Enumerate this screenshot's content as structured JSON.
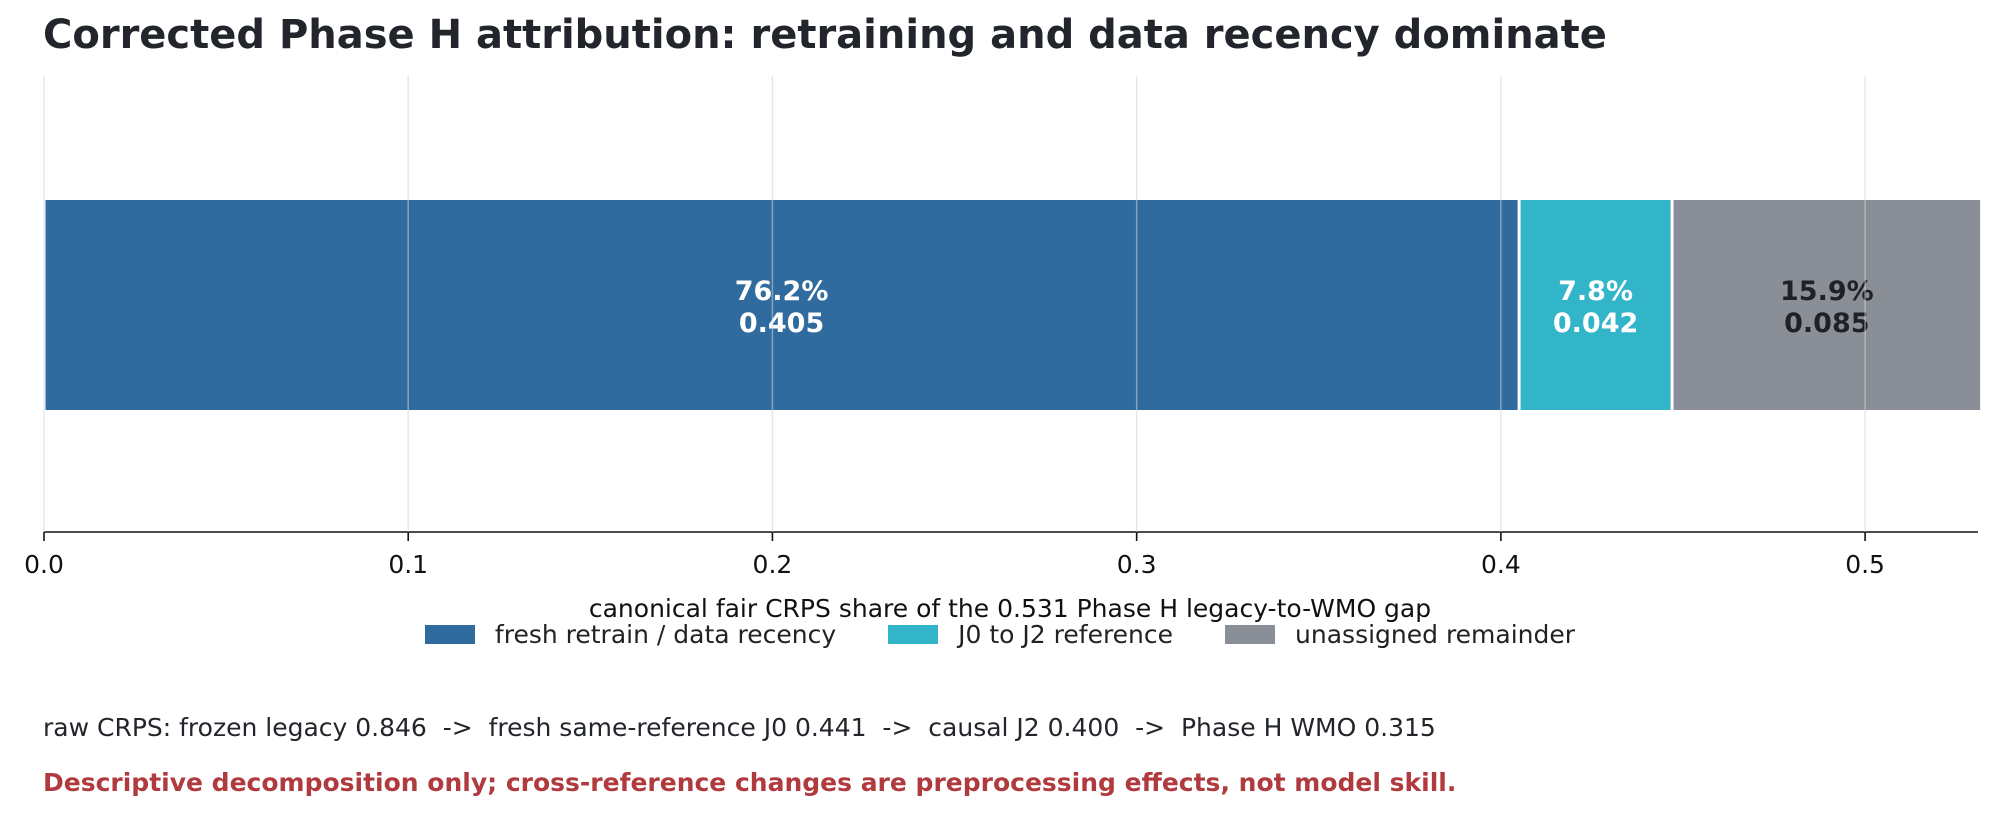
{
  "chart_data": {
    "type": "bar",
    "orientation": "horizontal",
    "stacked": true,
    "title": "Corrected Phase H attribution: retraining and data recency dominate",
    "xlabel": "canonical fair CRPS share of the 0.531 Phase H legacy-to-WMO gap",
    "ylabel": "",
    "xlim": [
      0,
      0.531
    ],
    "x_ticks": [
      0.0,
      0.1,
      0.2,
      0.3,
      0.4,
      0.5
    ],
    "x_tick_labels": [
      "0.0",
      "0.1",
      "0.2",
      "0.3",
      "0.4",
      "0.5"
    ],
    "grid": "vertical",
    "legend_position": "bottom-center",
    "series": [
      {
        "name": "fresh retrain / data recency",
        "value": 0.405,
        "percent_label": "76.2%",
        "value_label": "0.405",
        "color": "#2f6b9e",
        "label_color": "#ffffff"
      },
      {
        "name": "J0 to J2 reference",
        "value": 0.042,
        "percent_label": "7.8%",
        "value_label": "0.042",
        "color": "#32b5c9",
        "label_color": "#ffffff"
      },
      {
        "name": "unassigned remainder",
        "value": 0.085,
        "percent_label": "15.9%",
        "value_label": "0.085",
        "color": "#8a8e97",
        "label_color": "#1f2126"
      }
    ]
  },
  "notes": {
    "raw": "raw CRPS: frozen legacy 0.846  ->  fresh same-reference J0 0.441  ->  causal J2 0.400  ->  Phase H WMO 0.315",
    "disclaimer": "Descriptive decomposition only; cross-reference changes are preprocessing effects, not model skill."
  }
}
